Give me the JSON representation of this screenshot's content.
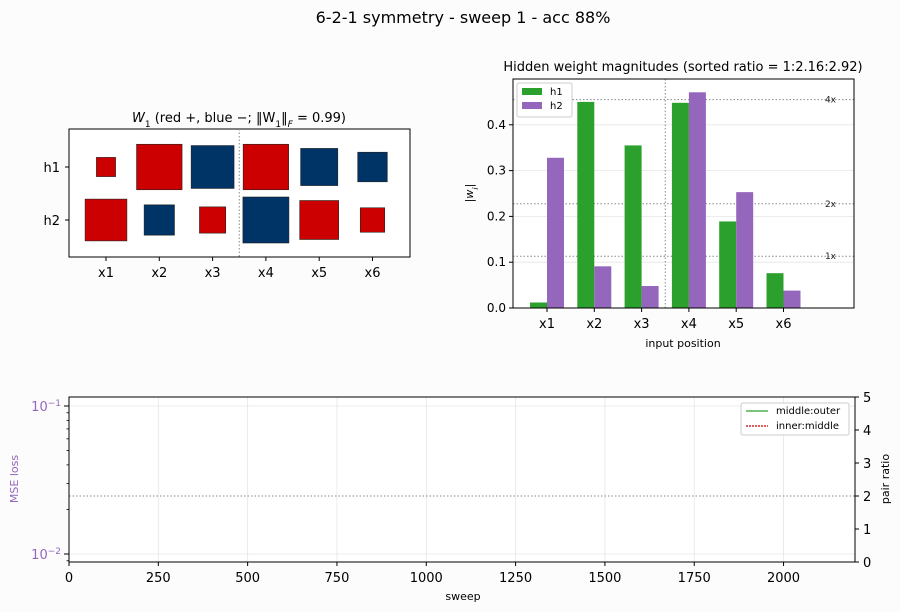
{
  "figure": {
    "suptitle": "6-2-1 symmetry  -  sweep 1  -  acc 88%"
  },
  "colors": {
    "positive": "#cc0000",
    "negative": "#003366",
    "h1": "#2ca02c",
    "h2": "#9467bd",
    "ref_line": "#888888",
    "mse_axis": "#9467bd",
    "middle_outer": "#2ca02c",
    "inner_middle": "#cc0000"
  },
  "chart_data": [
    {
      "type": "hinton",
      "title_prefix": "W",
      "title_sub": "1",
      "title_rest": "  (red +, blue −;  ‖W",
      "title_sub2": "1",
      "title_norm": "‖",
      "title_sub3": "F",
      "title_end": " = 0.99)",
      "rows": [
        "h1",
        "h2"
      ],
      "columns": [
        "x1",
        "x2",
        "x3",
        "x4",
        "x5",
        "x6"
      ],
      "values": [
        [
          0.08,
          0.45,
          -0.4,
          0.45,
          -0.3,
          -0.19
        ],
        [
          0.38,
          -0.2,
          0.15,
          -0.46,
          0.33,
          0.13
        ]
      ],
      "divider_after_column": 3
    },
    {
      "type": "bar",
      "title": "Hidden weight magnitudes  (sorted ratio = 1:2.16:2.92)",
      "categories": [
        "x1",
        "x2",
        "x3",
        "x4",
        "x5",
        "x6"
      ],
      "series": [
        {
          "name": "h1",
          "values": [
            0.012,
            0.45,
            0.355,
            0.448,
            0.189,
            0.076
          ]
        },
        {
          "name": "h2",
          "values": [
            0.328,
            0.091,
            0.048,
            0.471,
            0.253,
            0.038
          ]
        }
      ],
      "xlabel": "input position",
      "ylabel": "|w|",
      "ylim": [
        0,
        0.5
      ],
      "yticks": [
        "0.0",
        "0.1",
        "0.2",
        "0.3",
        "0.4"
      ],
      "ref_lines": [
        {
          "label": "4x",
          "value": 0.455
        },
        {
          "label": "2x",
          "value": 0.2275
        },
        {
          "label": "1x",
          "value": 0.113
        }
      ],
      "divider_after_category": 3,
      "legend": "top-left",
      "grid": true
    },
    {
      "type": "line",
      "xlabel": "sweep",
      "ylabel_left": "MSE loss",
      "ylabel_right": "pair ratio",
      "xlim": [
        0,
        2200
      ],
      "xticks": [
        "0",
        "250",
        "500",
        "750",
        "1000",
        "1250",
        "1500",
        "1750",
        "2000"
      ],
      "yticks_left": [
        {
          "base": "10",
          "exp": "−1"
        },
        {
          "base": "10",
          "exp": "−2"
        }
      ],
      "ylim_right": [
        0,
        5
      ],
      "yticks_right": [
        "0",
        "1",
        "2",
        "3",
        "4",
        "5"
      ],
      "ref_line_right": 2,
      "series": [
        {
          "name": "middle:outer",
          "values": []
        },
        {
          "name": "inner:middle",
          "values": []
        }
      ],
      "legend": "top-right",
      "grid": true
    }
  ]
}
